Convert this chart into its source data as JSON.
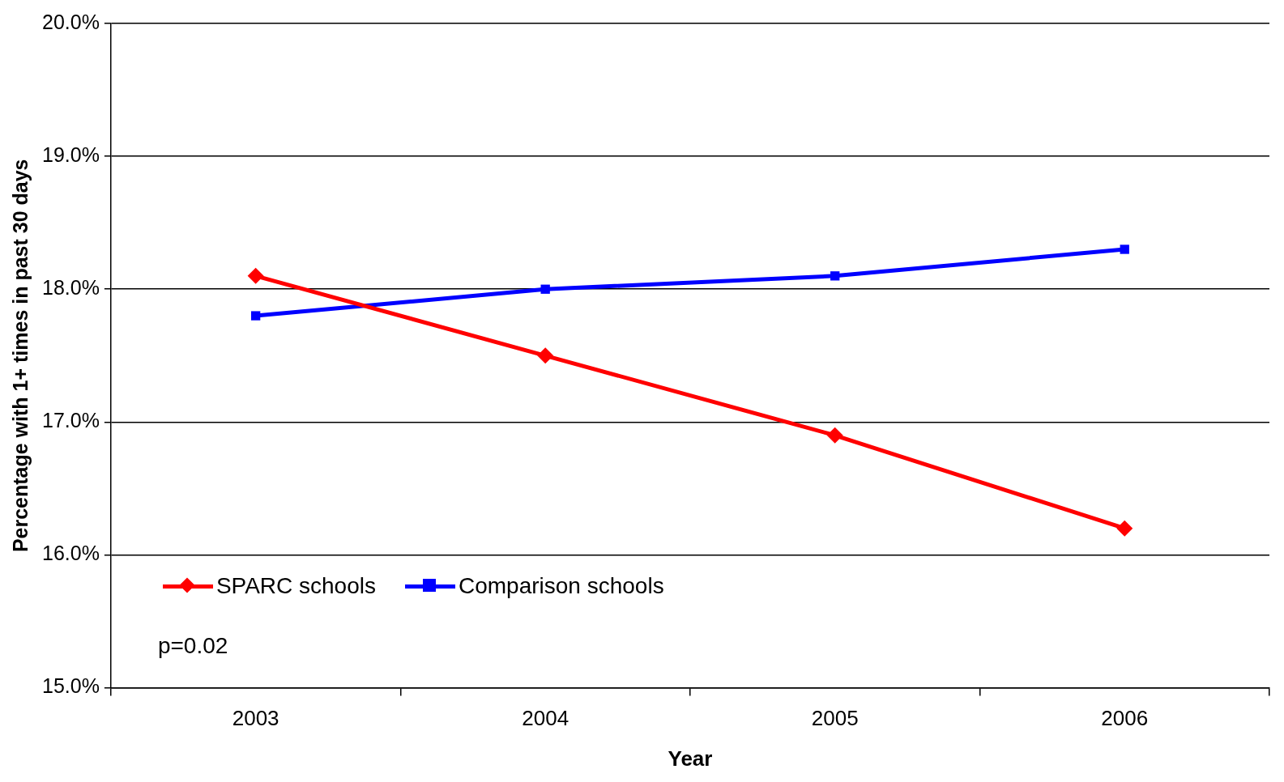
{
  "chart_data": {
    "type": "line",
    "xlabel": "Year",
    "ylabel": "Percentage with 1+ times in past 30 days",
    "categories": [
      "2003",
      "2004",
      "2005",
      "2006"
    ],
    "series": [
      {
        "name": "SPARC schools",
        "color": "#ff0000",
        "marker": "diamond",
        "values": [
          18.1,
          17.5,
          16.9,
          16.2
        ]
      },
      {
        "name": "Comparison schools",
        "color": "#0000ff",
        "marker": "square",
        "values": [
          17.8,
          18.0,
          18.1,
          18.3
        ]
      }
    ],
    "ylim": [
      15,
      20
    ],
    "yticks": [
      {
        "value": 15,
        "label": "15.0%"
      },
      {
        "value": 16,
        "label": "16.0%"
      },
      {
        "value": 17,
        "label": "17.0%"
      },
      {
        "value": 18,
        "label": "18.0%"
      },
      {
        "value": 19,
        "label": "19.0%"
      },
      {
        "value": 20,
        "label": "20.0%"
      }
    ],
    "grid": "y",
    "legend": "bottom left",
    "line_style": "solid",
    "annotations": [
      "p=0.02"
    ]
  }
}
